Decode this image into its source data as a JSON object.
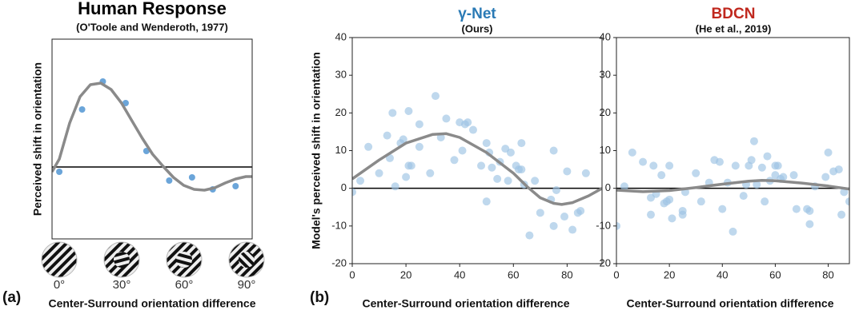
{
  "chart_data": [
    {
      "type": "scatter",
      "title": "Human Response",
      "subtitle": "(O'Toole and Wenderoth, 1977)",
      "title_color": "#000000",
      "ylabel": "Perceived shift in orientation",
      "xlabel": "Center-Surround orientation difference",
      "panel_label": "(a)",
      "stimulus_labels": [
        "0°",
        "30°",
        "60°",
        "90°"
      ],
      "xlim": [
        -3.5,
        93
      ],
      "ylim": [
        -9,
        16
      ],
      "zero_line": 0,
      "points": {
        "color": "#5b9bd5",
        "x": [
          0,
          11,
          21,
          32,
          42,
          53,
          64,
          74,
          85
        ],
        "y": [
          -0.6,
          7.2,
          10.7,
          8,
          2,
          -1.7,
          -1.3,
          -2.8,
          -2.4
        ]
      },
      "fit": {
        "color": "#8a8a8a",
        "x": [
          -3.5,
          0,
          5,
          10,
          15,
          20,
          25,
          30,
          35,
          40,
          45,
          50,
          55,
          60,
          65,
          70,
          75,
          80,
          85,
          90,
          93
        ],
        "y": [
          -0.6,
          1,
          5.5,
          8.8,
          10.3,
          10.5,
          9.7,
          8,
          5.8,
          3.6,
          1.6,
          0.1,
          -1.3,
          -2.3,
          -2.8,
          -2.9,
          -2.6,
          -2,
          -1.5,
          -1.2,
          -1.2
        ]
      }
    },
    {
      "type": "scatter",
      "title": "γ-Net",
      "subtitle": "(Ours)",
      "title_color": "#2a7ab5",
      "ylabel": "Model's perceived shift in orientation",
      "xlabel": "Center-Surround orientation difference",
      "panel_label": "(b)",
      "xlim": [
        0,
        93
      ],
      "ylim": [
        -20,
        40
      ],
      "xticks": [
        0,
        20,
        40,
        60,
        80
      ],
      "yticks": [
        -20,
        -10,
        0,
        10,
        20,
        30,
        40
      ],
      "zero_line": 0,
      "points": {
        "color": "#9cc3e4",
        "x": [
          0,
          3,
          6,
          10,
          13,
          14,
          15,
          16,
          18,
          19,
          20,
          21,
          21,
          22,
          25,
          25,
          29,
          31,
          33,
          35,
          38,
          40,
          41,
          42,
          43,
          45,
          48,
          50,
          50,
          51,
          52,
          54,
          55,
          57,
          58,
          59,
          61,
          62,
          63,
          63,
          64,
          66,
          68,
          70,
          74,
          75,
          75,
          76,
          79,
          80,
          82,
          84,
          85,
          87
        ],
        "y": [
          -1,
          2,
          11,
          4,
          14,
          8,
          20,
          0.5,
          12,
          13,
          3,
          20.5,
          6,
          6,
          11,
          17,
          4,
          24.5,
          13.5,
          18.5,
          7.5,
          17.5,
          10,
          17,
          17.5,
          15.5,
          6,
          12,
          -3.5,
          9.5,
          5.5,
          2.5,
          7,
          10.5,
          2,
          9.5,
          6,
          5,
          5,
          12,
          1,
          -12.5,
          2,
          -6.5,
          -3,
          -10,
          10,
          -0.5,
          -7.5,
          4.5,
          -11,
          -6.5,
          -6,
          4
        ]
      },
      "fit": {
        "color": "#8a8a8a",
        "x": [
          0,
          10,
          20,
          30,
          35,
          40,
          50,
          60,
          65,
          70,
          75,
          78,
          82,
          88,
          93
        ],
        "y": [
          2.5,
          7.5,
          12,
          14.3,
          14.5,
          13.5,
          9.5,
          4,
          0.5,
          -2.5,
          -4,
          -4.3,
          -3.8,
          -2,
          0
        ]
      }
    },
    {
      "type": "scatter",
      "title": "BDCN",
      "subtitle": "(He et al., 2019)",
      "title_color": "#c0281e",
      "xlabel": "Center-Surround orientation difference",
      "xlim": [
        0,
        88
      ],
      "ylim": [
        -20,
        40
      ],
      "xticks": [
        0,
        20,
        40,
        60,
        80
      ],
      "yticks": [
        -20,
        -10,
        0,
        10,
        20,
        30,
        40
      ],
      "zero_line": 0,
      "points": {
        "color": "#9cc3e4",
        "x": [
          0,
          3,
          6,
          10,
          13,
          13,
          14,
          15,
          17,
          18,
          19,
          20,
          20,
          21,
          25,
          25,
          26,
          30,
          32,
          35,
          37,
          39,
          40,
          42,
          44,
          45,
          48,
          49,
          50,
          51,
          52,
          53,
          55,
          56,
          57,
          58,
          60,
          60,
          61,
          62,
          63,
          67,
          68,
          72,
          73,
          73,
          75,
          79,
          80,
          82,
          84,
          85,
          86,
          88
        ],
        "y": [
          -10,
          0.5,
          9.5,
          7,
          -7,
          -2.5,
          6,
          -1.5,
          3.5,
          -4,
          -3.5,
          -3,
          6,
          -8,
          -6,
          -7,
          -1,
          4,
          -3.5,
          1.5,
          7.5,
          7,
          -5.5,
          1.5,
          -11.5,
          6,
          -2,
          1,
          6,
          7.5,
          12.5,
          1,
          5.5,
          -3.5,
          8.5,
          2,
          6,
          3.5,
          6,
          2.5,
          3,
          3.5,
          -5.5,
          -5.5,
          -9.5,
          -6,
          0.5,
          3,
          9.5,
          4.5,
          5,
          -7,
          -1,
          -3.5
        ]
      },
      "fit": {
        "color": "#8a8a8a",
        "x": [
          0,
          10,
          20,
          30,
          40,
          50,
          55,
          60,
          70,
          80,
          88
        ],
        "y": [
          -0.5,
          -0.9,
          -0.6,
          0.2,
          1.1,
          1.9,
          2.1,
          2,
          1.4,
          0.6,
          -0.2
        ]
      }
    }
  ]
}
